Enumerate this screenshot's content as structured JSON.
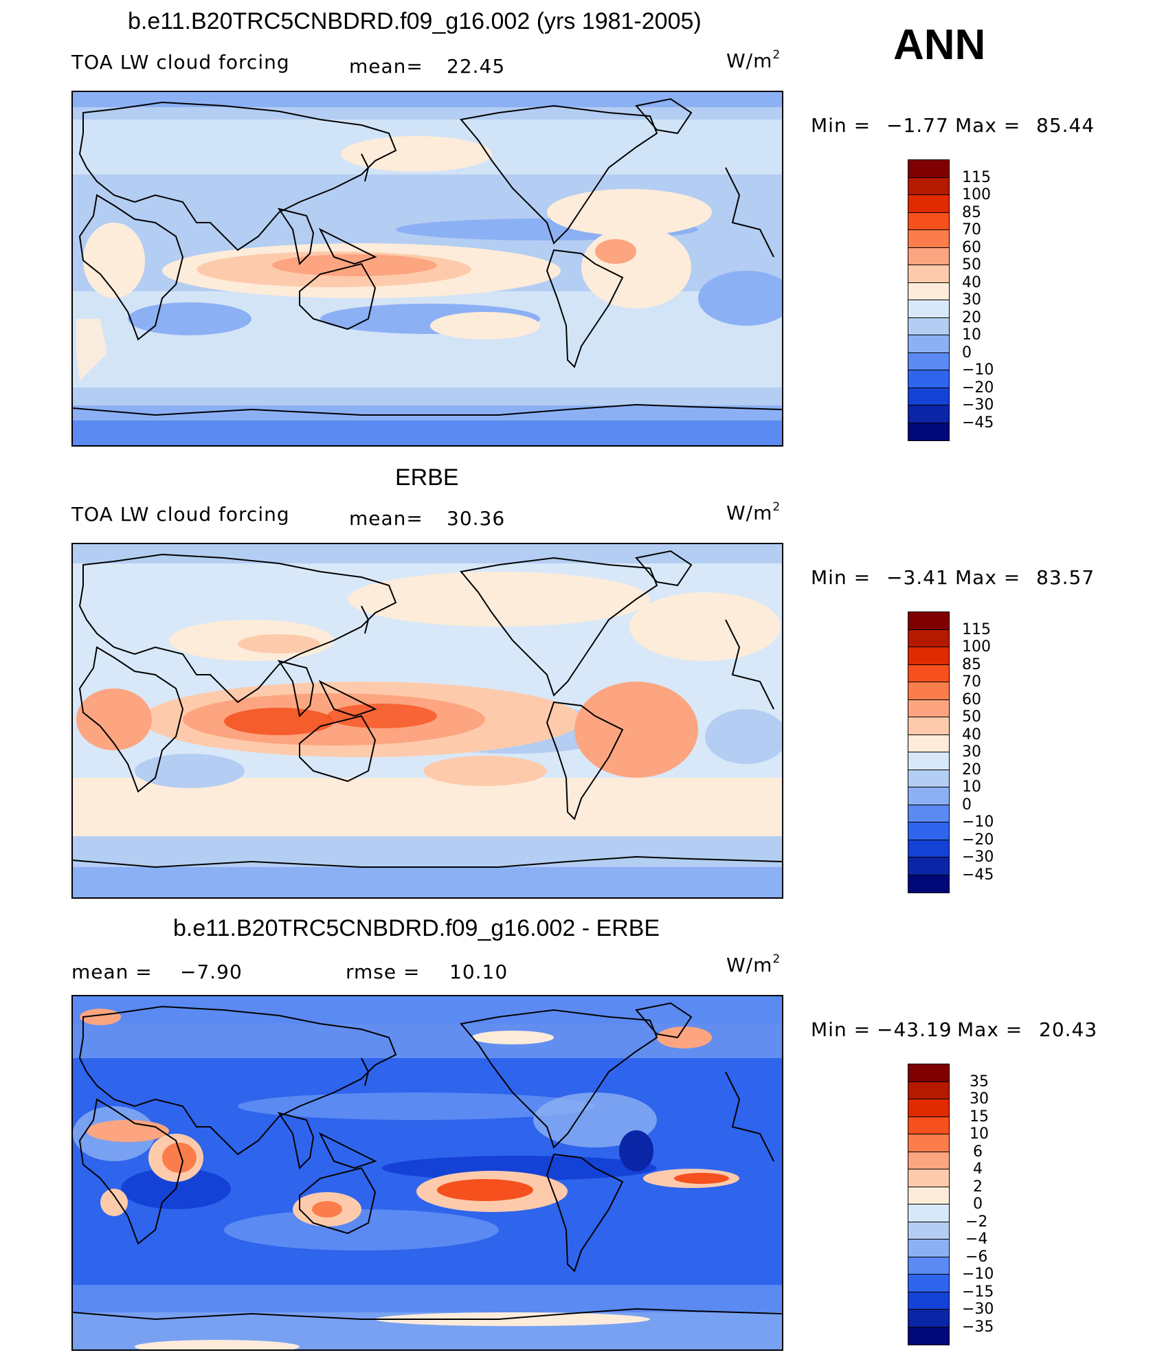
{
  "header": {
    "season": "ANN"
  },
  "panels": [
    {
      "title": "b.e11.B20TRC5CNBDRD.f09_g16.002 (yrs 1981-2005)",
      "left_label": "TOA LW cloud forcing",
      "stat1_label": "mean=",
      "stat1_value": "22.45",
      "stat2_label": "",
      "stat2_value": "",
      "units": "W/m",
      "units_sup": "2",
      "min_label": "Min =",
      "min_value": "−1.77",
      "max_label": "Max =",
      "max_value": "85.44",
      "levels": [
        "115",
        "100",
        "85",
        "70",
        "60",
        "50",
        "40",
        "30",
        "20",
        "10",
        "0",
        "−10",
        "−20",
        "−30",
        "−45"
      ],
      "colors": [
        "#7f0000",
        "#b51a00",
        "#e02b00",
        "#f5501d",
        "#fb7d4b",
        "#fca580",
        "#fdcbac",
        "#fdecda",
        "#d8e8f8",
        "#b4cdf2",
        "#8cb0f4",
        "#5a8af2",
        "#2f64ec",
        "#1542d6",
        "#0a25a6",
        "#00087a"
      ]
    },
    {
      "title": "ERBE",
      "left_label": "TOA LW cloud forcing",
      "stat1_label": "mean=",
      "stat1_value": "30.36",
      "stat2_label": "",
      "stat2_value": "",
      "units": "W/m",
      "units_sup": "2",
      "min_label": "Min =",
      "min_value": "−3.41",
      "max_label": "Max =",
      "max_value": "83.57",
      "levels": [
        "115",
        "100",
        "85",
        "70",
        "60",
        "50",
        "40",
        "30",
        "20",
        "10",
        "0",
        "−10",
        "−20",
        "−30",
        "−45"
      ],
      "colors": [
        "#7f0000",
        "#b51a00",
        "#e02b00",
        "#f5501d",
        "#fb7d4b",
        "#fca580",
        "#fdcbac",
        "#fdecda",
        "#d8e8f8",
        "#b4cdf2",
        "#8cb0f4",
        "#5a8af2",
        "#2f64ec",
        "#1542d6",
        "#0a25a6",
        "#00087a"
      ]
    },
    {
      "title": "b.e11.B20TRC5CNBDRD.f09_g16.002 - ERBE",
      "left_label": "mean =",
      "stat1_label": "−7.90",
      "stat1_value": "",
      "stat2_label": "rmse =",
      "stat2_value": "10.10",
      "units": "W/m",
      "units_sup": "2",
      "min_label": "Min =",
      "min_value": "−43.19",
      "max_label": "Max =",
      "max_value": "20.43",
      "levels": [
        "35",
        "30",
        "15",
        "10",
        "6",
        "4",
        "2",
        "0",
        "−2",
        "−4",
        "−6",
        "−10",
        "−15",
        "−30",
        "−35"
      ],
      "colors": [
        "#7f0000",
        "#b51a00",
        "#e02b00",
        "#f5501d",
        "#fb7d4b",
        "#fca580",
        "#fdcbac",
        "#fdecda",
        "#d8e8f8",
        "#b4cdf2",
        "#8cb0f4",
        "#5a8af2",
        "#2f64ec",
        "#1542d6",
        "#0a25a6",
        "#00087a"
      ]
    }
  ]
}
